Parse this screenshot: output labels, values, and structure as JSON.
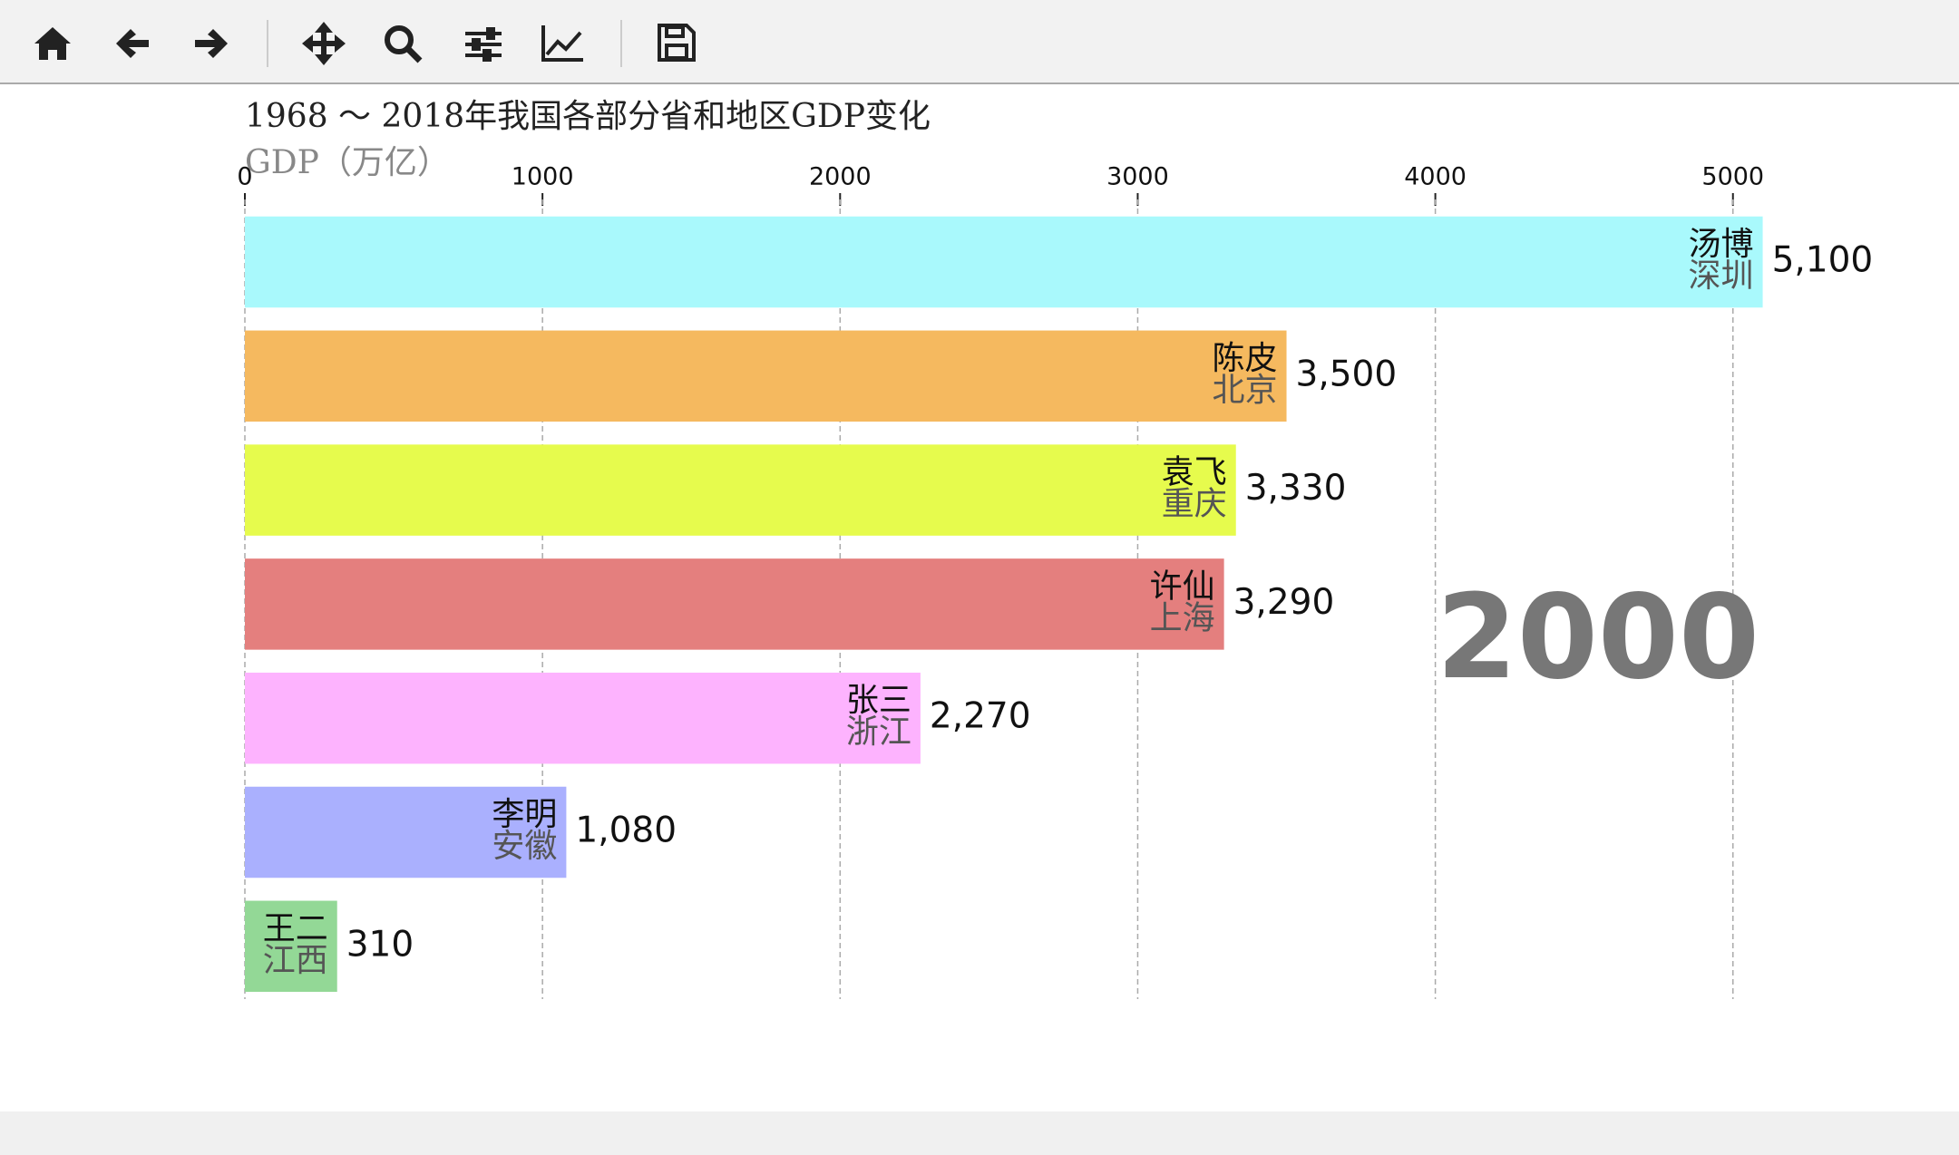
{
  "chart_data": {
    "type": "bar",
    "orientation": "horizontal",
    "title": "1968 ～ 2018年我国各部分省和地区GDP变化",
    "xlabel": "GDP（万亿）",
    "categories": [
      "汤博",
      "陈皮",
      "袁飞",
      "许仙",
      "张三",
      "李明",
      "王二"
    ],
    "regions": [
      "深圳",
      "北京",
      "重庆",
      "上海",
      "浙江",
      "安徽",
      "江西"
    ],
    "values": [
      5100,
      3500,
      3330,
      3290,
      2270,
      1080,
      310
    ],
    "value_labels": [
      "5,100",
      "3,500",
      "3,330",
      "3,290",
      "2,270",
      "1,080",
      "310"
    ],
    "colors": [
      "#a9f9fc",
      "#f5b95f",
      "#e6fb4d",
      "#e47f7e",
      "#fdb3fe",
      "#aab0fe",
      "#93d896"
    ],
    "xlim": [
      0,
      5400
    ],
    "xticks": [
      0,
      1000,
      2000,
      3000,
      4000,
      5000
    ],
    "grid": true,
    "annotation": "2000"
  }
}
